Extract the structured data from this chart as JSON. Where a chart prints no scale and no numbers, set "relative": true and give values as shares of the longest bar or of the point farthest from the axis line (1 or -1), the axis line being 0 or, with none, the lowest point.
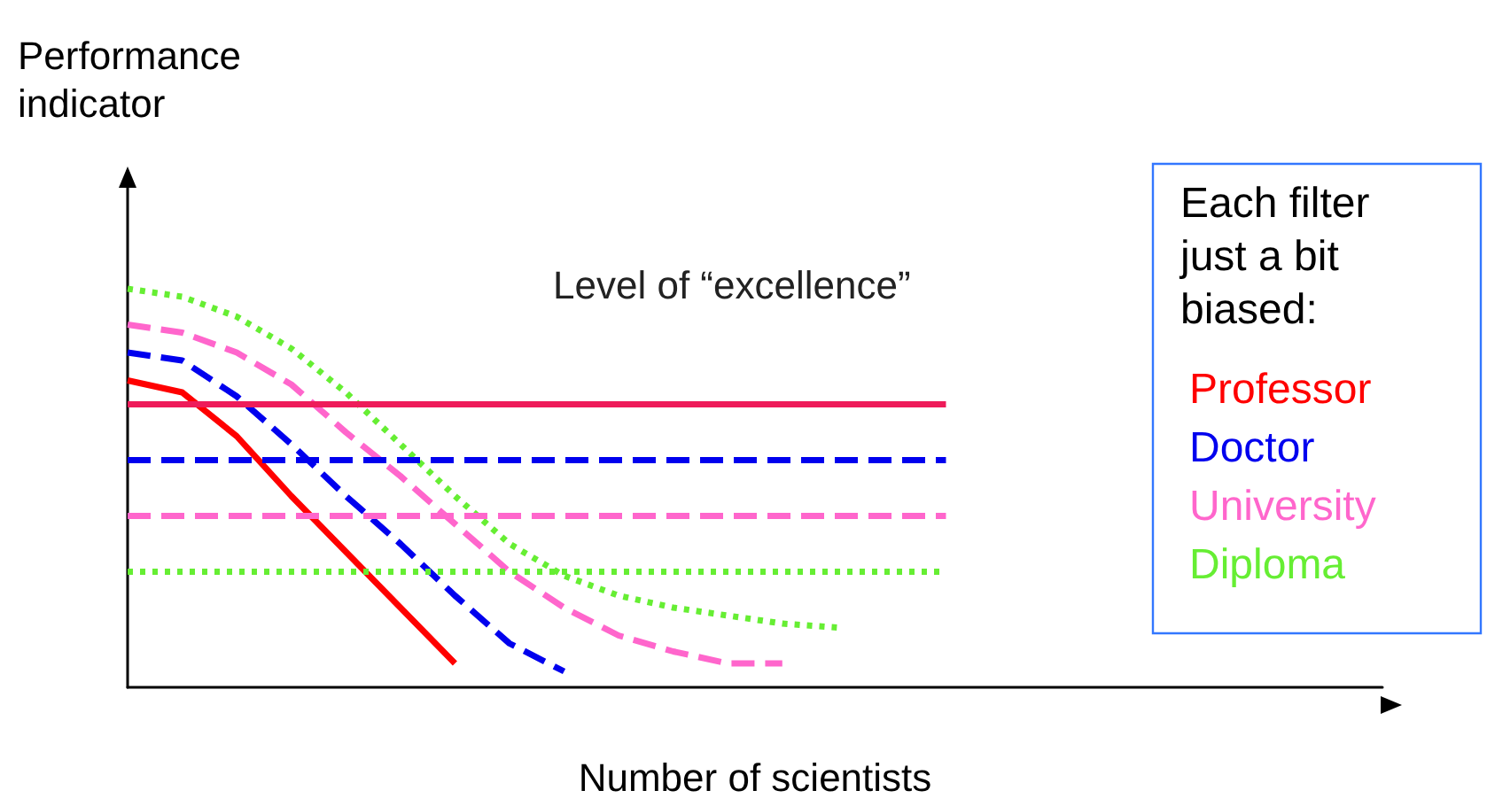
{
  "chart_data": {
    "type": "line",
    "relative": true,
    "xlabel": "Number of scientists",
    "ylabel": "Performance\nindicator",
    "legend_title": "Each filter\njust a bit\nbiased:",
    "legend": "right",
    "marker": "none",
    "grid": false,
    "annotations": [
      "Level of “excellence”"
    ],
    "categories": [
      null,
      null,
      null,
      null,
      null,
      null,
      null,
      null,
      null,
      null,
      null,
      null,
      null,
      null,
      null,
      null,
      null,
      null,
      null,
      null,
      null,
      null,
      null,
      null
    ],
    "series": [
      {
        "name": "Professor",
        "color": "#ff0000",
        "line_style": "solid",
        "values": [
          0.77,
          0.74,
          0.63,
          0.48,
          0.34,
          0.2,
          0.06,
          null,
          null,
          null,
          null,
          null,
          null,
          null,
          null,
          null,
          null,
          null,
          null,
          null,
          null,
          null,
          null,
          null
        ]
      },
      {
        "name": "Doctor",
        "color": "#0000ee",
        "line_style": "dashed",
        "values": [
          0.84,
          0.82,
          0.73,
          0.61,
          0.48,
          0.36,
          0.23,
          0.11,
          0.04,
          null,
          null,
          null,
          null,
          null,
          null,
          null,
          null,
          null,
          null,
          null,
          null,
          null,
          null,
          null
        ]
      },
      {
        "name": "University",
        "color": "#ff66cc",
        "line_style": "dashed",
        "values": [
          0.91,
          0.89,
          0.84,
          0.76,
          0.64,
          0.53,
          0.41,
          0.29,
          0.2,
          0.13,
          0.09,
          0.06,
          0.06,
          null,
          null,
          null,
          null,
          null,
          null,
          null,
          null,
          null,
          null,
          null
        ]
      },
      {
        "name": "Diploma",
        "color": "#66ee33",
        "line_style": "dotted",
        "values": [
          1,
          0.98,
          0.93,
          0.85,
          0.74,
          0.61,
          0.48,
          0.36,
          0.28,
          0.23,
          0.2,
          0.18,
          0.16,
          0.15,
          null,
          null,
          null,
          null,
          null,
          null,
          null,
          null,
          null,
          null
        ]
      },
      {
        "color": "#ee1c5a",
        "line_style": "solid",
        "values": [
          0.71,
          0.71,
          0.71,
          0.71,
          0.71,
          0.71,
          0.71,
          0.71,
          0.71,
          0.71,
          0.71,
          0.71,
          0.71,
          0.71,
          0.71,
          0.71,
          null,
          null,
          null,
          null,
          null,
          null,
          null,
          null
        ]
      },
      {
        "color": "#0000ee",
        "line_style": "dashed",
        "values": [
          0.57,
          0.57,
          0.57,
          0.57,
          0.57,
          0.57,
          0.57,
          0.57,
          0.57,
          0.57,
          0.57,
          0.57,
          0.57,
          0.57,
          0.57,
          0.57,
          null,
          null,
          null,
          null,
          null,
          null,
          null,
          null
        ]
      },
      {
        "color": "#ff66cc",
        "line_style": "dashed",
        "values": [
          0.43,
          0.43,
          0.43,
          0.43,
          0.43,
          0.43,
          0.43,
          0.43,
          0.43,
          0.43,
          0.43,
          0.43,
          0.43,
          0.43,
          0.43,
          0.43,
          null,
          null,
          null,
          null,
          null,
          null,
          null,
          null
        ]
      },
      {
        "color": "#66ee33",
        "line_style": "dotted",
        "values": [
          0.29,
          0.29,
          0.29,
          0.29,
          0.29,
          0.29,
          0.29,
          0.29,
          0.29,
          0.29,
          0.29,
          0.29,
          0.29,
          0.29,
          0.29,
          0.29,
          null,
          null,
          null,
          null,
          null,
          null,
          null,
          null
        ]
      }
    ]
  }
}
